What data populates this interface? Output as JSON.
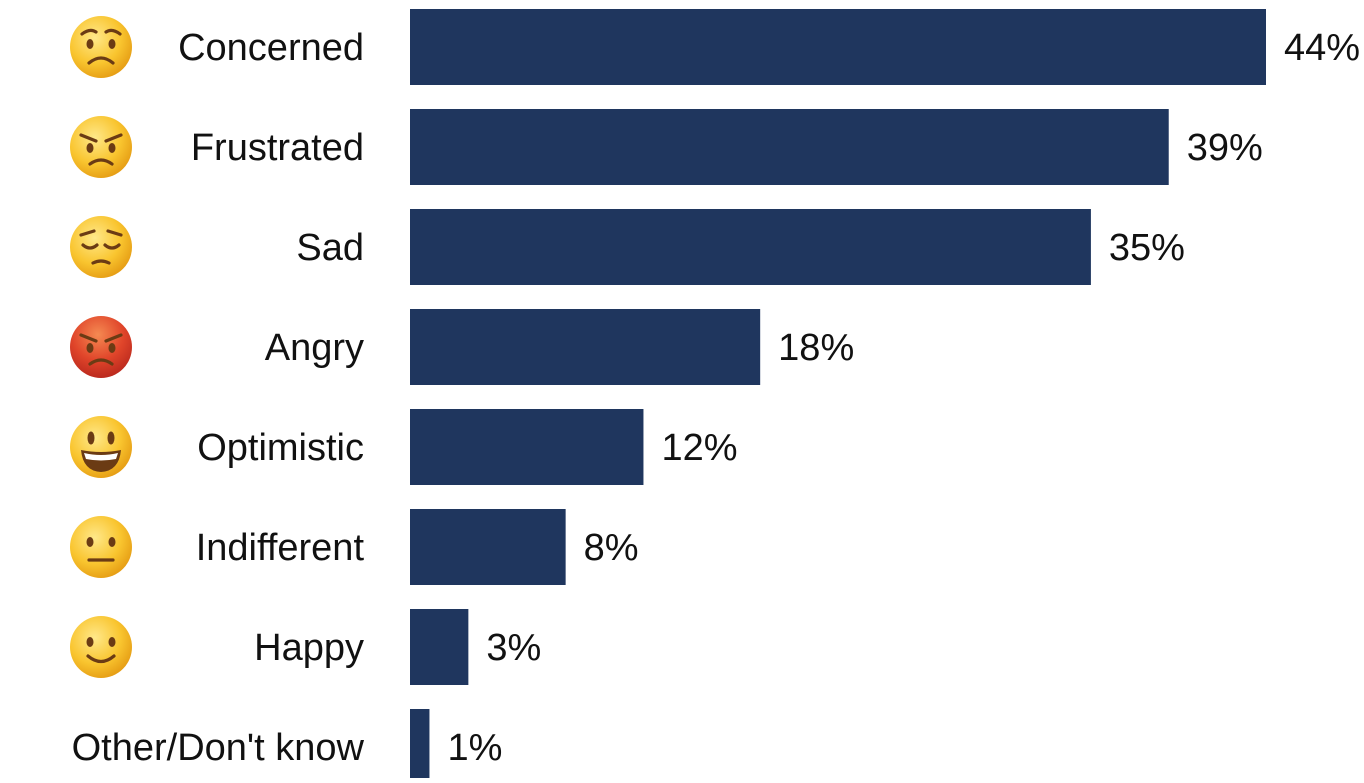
{
  "chart_data": {
    "type": "bar",
    "orientation": "horizontal",
    "categories": [
      "Concerned",
      "Frustrated",
      "Sad",
      "Angry",
      "Optimistic",
      "Indifferent",
      "Happy",
      "Other/Don't know"
    ],
    "icons": [
      "worried-face-icon",
      "angry-face-icon",
      "pensive-face-icon",
      "pouting-face-icon",
      "grinning-face-icon",
      "neutral-face-icon",
      "slightly-smiling-face-icon",
      ""
    ],
    "values": [
      44,
      39,
      35,
      18,
      12,
      8,
      3,
      1
    ],
    "value_labels": [
      "44%",
      "39%",
      "35%",
      "18%",
      "12%",
      "8%",
      "3%",
      "1%"
    ],
    "unit": "%",
    "xlim": [
      0,
      44
    ],
    "grid": false,
    "legend": "none",
    "bar_color": "#1f365e",
    "title": "",
    "xlabel": "",
    "ylabel": ""
  }
}
